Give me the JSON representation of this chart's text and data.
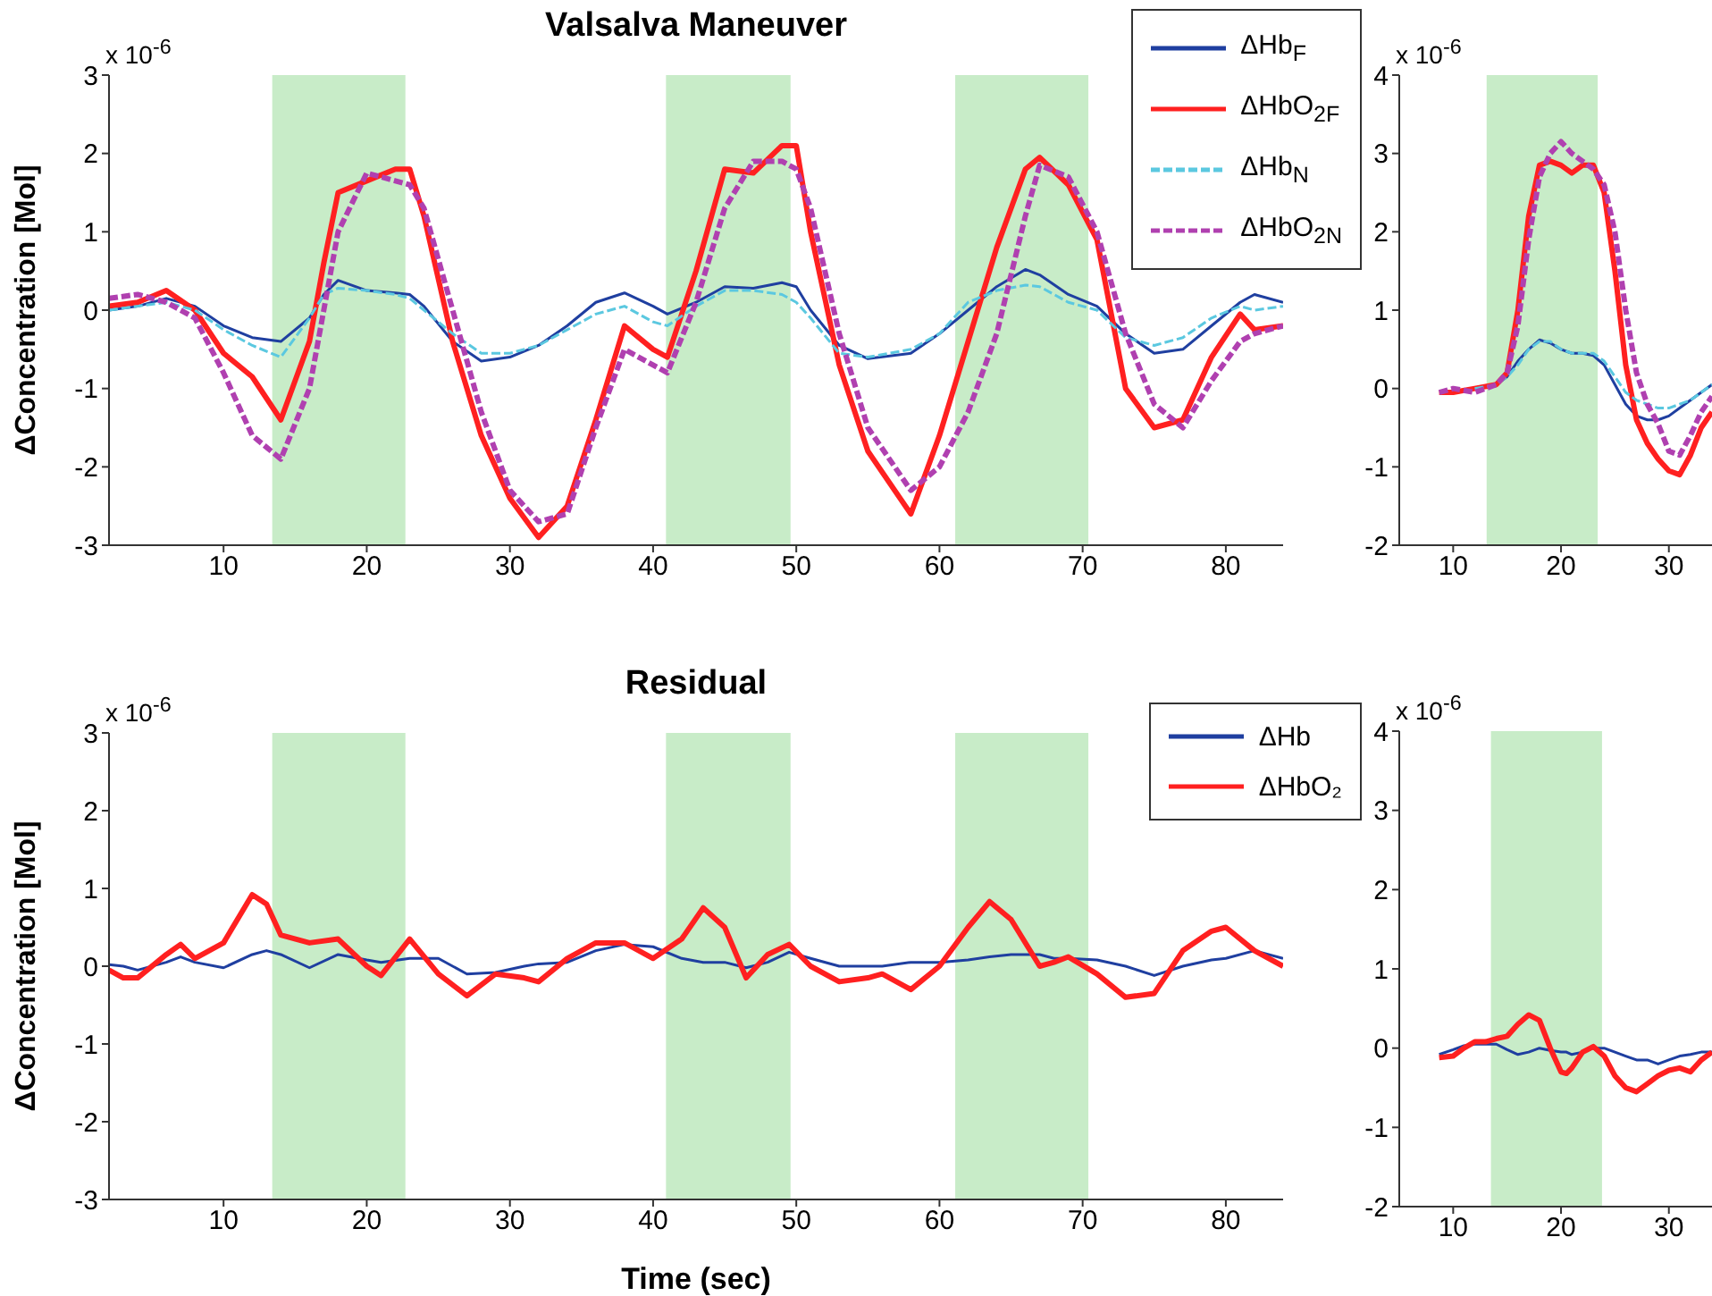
{
  "chart_data": [
    {
      "type": "line",
      "title": "Valsalva Maneuver",
      "ylabel": "ΔConcentration [Mol]",
      "annotations": [
        "x 10$^{-6}$"
      ],
      "legend": "top right",
      "grid": false,
      "x": [
        2,
        4,
        6,
        8,
        10,
        12,
        14,
        16,
        17,
        18,
        20,
        22,
        23,
        24,
        26,
        28,
        30,
        32,
        34,
        36,
        38,
        40,
        41,
        43,
        45,
        47,
        49,
        50,
        51,
        53,
        55,
        58,
        60,
        62,
        64,
        66,
        67,
        69,
        71,
        73,
        75,
        77,
        79,
        81,
        82,
        84
      ],
      "xlim": [
        2,
        84
      ],
      "xticks": [
        10,
        20,
        30,
        40,
        50,
        60,
        70,
        80
      ],
      "ylim": [
        -3,
        3
      ],
      "yticks": [
        -3,
        -2,
        -1,
        0,
        1,
        2,
        3
      ],
      "bands": [
        {
          "axis": "x",
          "from": 13.4,
          "to": 22.7,
          "color": "#c8ecc8"
        },
        {
          "axis": "x",
          "from": 40.9,
          "to": 49.6,
          "color": "#c8ecc8"
        },
        {
          "axis": "x",
          "from": 61.1,
          "to": 70.4,
          "color": "#c8ecc8"
        }
      ],
      "series": [
        {
          "name": "ΔHb$_{F}$",
          "color": "#1f3fa0",
          "line_style": "solid",
          "values": [
            0.0,
            0.05,
            0.15,
            0.05,
            -0.2,
            -0.35,
            -0.4,
            -0.1,
            0.2,
            0.38,
            0.25,
            0.22,
            0.2,
            0.05,
            -0.4,
            -0.65,
            -0.6,
            -0.45,
            -0.2,
            0.1,
            0.22,
            0.05,
            -0.05,
            0.1,
            0.3,
            0.28,
            0.35,
            0.3,
            0.0,
            -0.45,
            -0.62,
            -0.55,
            -0.3,
            0.0,
            0.3,
            0.52,
            0.45,
            0.2,
            0.05,
            -0.3,
            -0.55,
            -0.5,
            -0.2,
            0.1,
            0.2,
            0.1
          ]
        },
        {
          "name": "ΔHbO$_{2F}$",
          "color": "#ff2020",
          "line_style": "solid",
          "values": [
            0.05,
            0.1,
            0.25,
            0.0,
            -0.55,
            -0.85,
            -1.4,
            -0.4,
            0.6,
            1.5,
            1.65,
            1.8,
            1.8,
            1.2,
            -0.4,
            -1.6,
            -2.4,
            -2.9,
            -2.5,
            -1.4,
            -0.2,
            -0.5,
            -0.6,
            0.5,
            1.8,
            1.75,
            2.1,
            2.1,
            1.0,
            -0.7,
            -1.8,
            -2.6,
            -1.6,
            -0.4,
            0.8,
            1.8,
            1.95,
            1.6,
            0.9,
            -1.0,
            -1.5,
            -1.4,
            -0.6,
            -0.05,
            -0.25,
            -0.2
          ]
        },
        {
          "name": "ΔHb$_{N}$",
          "color": "#5bc8e0",
          "line_style": "dashed",
          "values": [
            0.0,
            0.05,
            0.1,
            0.0,
            -0.25,
            -0.45,
            -0.6,
            -0.1,
            0.2,
            0.28,
            0.25,
            0.2,
            0.15,
            0.0,
            -0.3,
            -0.55,
            -0.55,
            -0.45,
            -0.25,
            -0.05,
            0.05,
            -0.15,
            -0.2,
            0.05,
            0.25,
            0.25,
            0.2,
            0.1,
            -0.1,
            -0.55,
            -0.6,
            -0.5,
            -0.3,
            0.1,
            0.25,
            0.32,
            0.3,
            0.1,
            0.0,
            -0.35,
            -0.45,
            -0.35,
            -0.1,
            0.05,
            0.0,
            0.05
          ]
        },
        {
          "name": "ΔHbO$_{2N}$",
          "color": "#b040b0",
          "line_style": "dashed",
          "values": [
            0.15,
            0.2,
            0.1,
            -0.1,
            -0.8,
            -1.6,
            -1.9,
            -1.0,
            0.0,
            1.0,
            1.75,
            1.65,
            1.6,
            1.3,
            0.0,
            -1.3,
            -2.3,
            -2.7,
            -2.6,
            -1.5,
            -0.5,
            -0.7,
            -0.8,
            0.1,
            1.3,
            1.9,
            1.9,
            1.8,
            1.3,
            -0.3,
            -1.5,
            -2.3,
            -2.0,
            -1.3,
            -0.3,
            1.2,
            1.85,
            1.7,
            1.0,
            -0.3,
            -1.2,
            -1.5,
            -0.9,
            -0.4,
            -0.3,
            -0.2
          ]
        }
      ]
    },
    {
      "type": "line",
      "annotations": [
        "x 10$^{-6}$"
      ],
      "grid": false,
      "x": [
        8.7,
        10,
        12,
        14,
        15,
        16,
        17,
        18,
        19,
        20,
        21,
        22,
        23,
        24,
        25,
        26,
        27,
        28,
        29,
        30,
        31,
        32,
        33,
        34
      ],
      "xlim": [
        5,
        34
      ],
      "xticks": [
        10,
        20,
        30
      ],
      "ylim": [
        -2,
        4
      ],
      "yticks": [
        -2,
        -1,
        0,
        1,
        2,
        3,
        4
      ],
      "bands": [
        {
          "axis": "x",
          "from": 13.1,
          "to": 23.4,
          "color": "#c8ecc8"
        }
      ],
      "series": [
        {
          "color": "#1f3fa0",
          "line_style": "solid",
          "values": [
            null,
            null,
            0.0,
            0.05,
            0.15,
            0.35,
            0.5,
            0.62,
            0.58,
            0.5,
            0.45,
            0.45,
            0.42,
            0.3,
            0.05,
            -0.2,
            -0.35,
            -0.4,
            -0.4,
            -0.35,
            -0.25,
            -0.15,
            -0.05,
            0.05
          ]
        },
        {
          "color": "#ff2020",
          "line_style": "solid",
          "values": [
            -0.05,
            -0.05,
            0.0,
            0.05,
            0.2,
            1.0,
            2.2,
            2.85,
            2.9,
            2.85,
            2.75,
            2.85,
            2.85,
            2.5,
            1.5,
            0.3,
            -0.4,
            -0.7,
            -0.9,
            -1.05,
            -1.1,
            -0.85,
            -0.5,
            -0.3
          ]
        },
        {
          "color": "#5bc8e0",
          "line_style": "dashed",
          "values": [
            null,
            null,
            0.0,
            0.05,
            0.15,
            0.3,
            0.5,
            0.6,
            0.6,
            0.5,
            0.45,
            0.45,
            0.45,
            0.35,
            0.15,
            -0.05,
            -0.15,
            -0.2,
            -0.25,
            -0.25,
            -0.2,
            -0.15,
            -0.05,
            0.05
          ]
        },
        {
          "color": "#b040b0",
          "line_style": "dashed",
          "values": [
            -0.05,
            0.0,
            -0.05,
            0.05,
            0.2,
            0.8,
            1.9,
            2.7,
            3.0,
            3.15,
            3.0,
            2.9,
            2.8,
            2.6,
            2.0,
            1.0,
            0.2,
            -0.2,
            -0.45,
            -0.8,
            -0.85,
            -0.6,
            -0.3,
            -0.1
          ]
        }
      ]
    },
    {
      "type": "line",
      "title": "Residual",
      "xlabel": "Time (sec)",
      "ylabel": "ΔConcentration [Mol]",
      "annotations": [
        "x 10$^{-6}$"
      ],
      "legend": "top right",
      "grid": false,
      "x": [
        2,
        3,
        4,
        6,
        7,
        8,
        10,
        12,
        13,
        14,
        16,
        18,
        20,
        21,
        23,
        25,
        27,
        29,
        31,
        32,
        34,
        36,
        38,
        40,
        42,
        43.5,
        45,
        46.5,
        48,
        49.5,
        51,
        53,
        55,
        56,
        58,
        60,
        62,
        63.5,
        65,
        67,
        68,
        69,
        71,
        73,
        75,
        77,
        79,
        80,
        82,
        84
      ],
      "xlim": [
        2,
        84
      ],
      "xticks": [
        10,
        20,
        30,
        40,
        50,
        60,
        70,
        80
      ],
      "ylim": [
        -3,
        3
      ],
      "yticks": [
        -3,
        -2,
        -1,
        0,
        1,
        2,
        3
      ],
      "bands": [
        {
          "axis": "x",
          "from": 13.4,
          "to": 22.7,
          "color": "#c8ecc8"
        },
        {
          "axis": "x",
          "from": 40.9,
          "to": 49.6,
          "color": "#c8ecc8"
        },
        {
          "axis": "x",
          "from": 61.1,
          "to": 70.4,
          "color": "#c8ecc8"
        }
      ],
      "series": [
        {
          "name": "ΔHb",
          "color": "#1f3fa0",
          "line_style": "solid",
          "values": [
            0.02,
            0.0,
            -0.05,
            0.05,
            0.12,
            0.05,
            -0.02,
            0.15,
            0.2,
            0.15,
            -0.02,
            0.15,
            0.08,
            0.05,
            0.1,
            0.1,
            -0.1,
            -0.08,
            0.0,
            0.03,
            0.05,
            0.2,
            0.28,
            0.25,
            0.1,
            0.05,
            0.05,
            -0.02,
            0.05,
            0.18,
            0.1,
            0.0,
            0.0,
            0.0,
            0.05,
            0.05,
            0.08,
            0.12,
            0.15,
            0.15,
            0.1,
            0.1,
            0.08,
            0.0,
            -0.12,
            0.0,
            0.08,
            0.1,
            0.2,
            0.1
          ]
        },
        {
          "name": "ΔHbO₂",
          "color": "#ff2020",
          "line_style": "solid",
          "values": [
            -0.05,
            -0.15,
            -0.15,
            0.15,
            0.28,
            0.1,
            0.3,
            0.92,
            0.8,
            0.4,
            0.3,
            0.35,
            0.0,
            -0.12,
            0.35,
            -0.1,
            -0.38,
            -0.1,
            -0.15,
            -0.2,
            0.1,
            0.3,
            0.3,
            0.1,
            0.35,
            0.75,
            0.5,
            -0.15,
            0.15,
            0.28,
            0.0,
            -0.2,
            -0.15,
            -0.1,
            -0.3,
            0.0,
            0.5,
            0.83,
            0.6,
            0.0,
            0.05,
            0.12,
            -0.1,
            -0.4,
            -0.35,
            0.2,
            0.45,
            0.5,
            0.2,
            0.0
          ]
        }
      ]
    },
    {
      "type": "line",
      "annotations": [
        "x 10$^{-6}$"
      ],
      "grid": false,
      "x": [
        8.7,
        10,
        11,
        12,
        13,
        14,
        15,
        16,
        17,
        18,
        19,
        20,
        20.5,
        21,
        22,
        23,
        24,
        25,
        26,
        27,
        28,
        29,
        30,
        31,
        32,
        33,
        34
      ],
      "xlim": [
        5,
        34
      ],
      "xticks": [
        10,
        20,
        30
      ],
      "ylim": [
        -2,
        4
      ],
      "yticks": [
        -2,
        -1,
        0,
        1,
        2,
        3,
        4
      ],
      "bands": [
        {
          "axis": "x",
          "from": 13.5,
          "to": 23.8,
          "color": "#c8ecc8"
        }
      ],
      "series": [
        {
          "color": "#1f3fa0",
          "line_style": "solid",
          "values": [
            -0.08,
            -0.02,
            0.03,
            0.05,
            0.05,
            0.05,
            -0.02,
            -0.08,
            -0.05,
            0.0,
            -0.03,
            -0.05,
            -0.05,
            -0.08,
            -0.05,
            0.0,
            0.0,
            -0.05,
            -0.1,
            -0.15,
            -0.15,
            -0.2,
            -0.15,
            -0.1,
            -0.08,
            -0.05,
            -0.05
          ]
        },
        {
          "color": "#ff2020",
          "line_style": "solid",
          "values": [
            -0.12,
            -0.1,
            0.0,
            0.08,
            0.08,
            0.12,
            0.15,
            0.3,
            0.42,
            0.35,
            0.0,
            -0.3,
            -0.32,
            -0.25,
            -0.05,
            0.02,
            -0.1,
            -0.35,
            -0.5,
            -0.55,
            -0.45,
            -0.35,
            -0.28,
            -0.25,
            -0.3,
            -0.15,
            -0.05
          ]
        }
      ]
    }
  ]
}
